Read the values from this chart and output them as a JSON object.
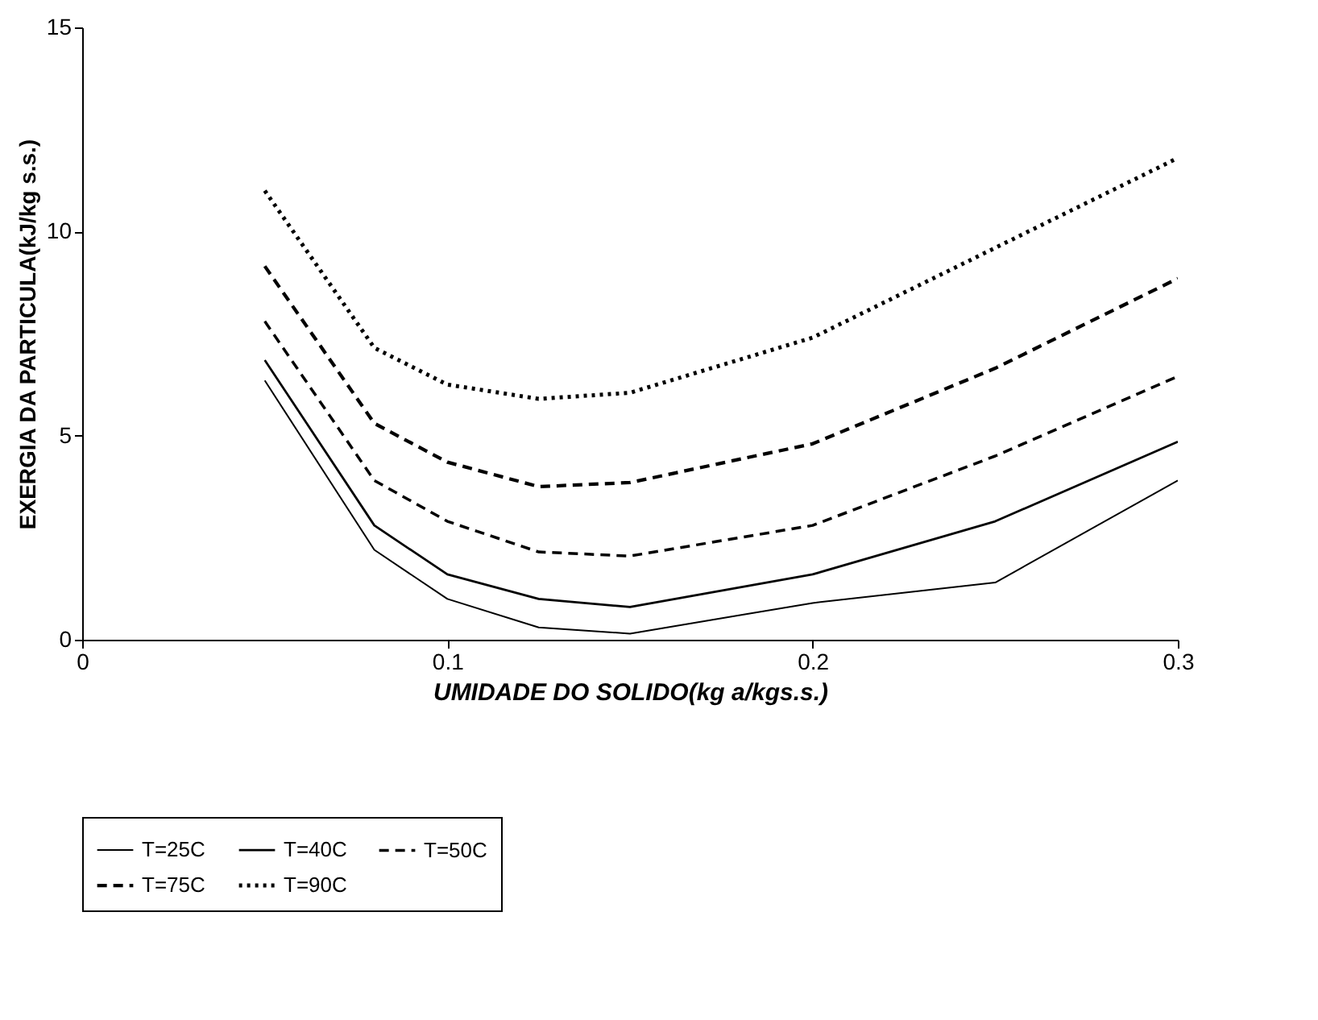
{
  "chart_data": {
    "type": "line",
    "xlabel": "UMIDADE DO SOLIDO(kg a/kgs.s.)",
    "ylabel": "EXERGIA DA PARTICULA(kJ/kg s.s.)",
    "x": [
      0.05,
      0.08,
      0.1,
      0.125,
      0.15,
      0.2,
      0.25,
      0.3
    ],
    "xlim": [
      0,
      0.3
    ],
    "xticks": [
      0,
      0.1,
      0.2,
      0.3
    ],
    "ylim": [
      0,
      15
    ],
    "yticks": [
      0,
      5,
      10,
      15
    ],
    "grid": false,
    "legend": "bottom",
    "marker": "none",
    "series": [
      {
        "name": "T=25C",
        "color": "#000000",
        "line_style": "solid",
        "values": [
          6.35,
          2.2,
          1.0,
          0.3,
          0.15,
          0.9,
          1.4,
          3.9
        ]
      },
      {
        "name": "T=40C",
        "color": "#000000",
        "line_style": "solid",
        "values": [
          6.85,
          2.8,
          1.6,
          1.0,
          0.8,
          1.6,
          2.9,
          4.85
        ]
      },
      {
        "name": "T=50C",
        "color": "#000000",
        "line_style": "dashed",
        "values": [
          7.8,
          3.9,
          2.9,
          2.15,
          2.05,
          2.8,
          4.5,
          6.45
        ]
      },
      {
        "name": "T=75C",
        "color": "#000000",
        "line_style": "dashed",
        "values": [
          9.15,
          5.3,
          4.35,
          3.75,
          3.85,
          4.8,
          6.65,
          8.85
        ]
      },
      {
        "name": "T=90C",
        "color": "#000000",
        "line_style": "dotted",
        "values": [
          11.0,
          7.15,
          6.25,
          5.9,
          6.05,
          7.4,
          9.6,
          11.8
        ]
      }
    ]
  }
}
